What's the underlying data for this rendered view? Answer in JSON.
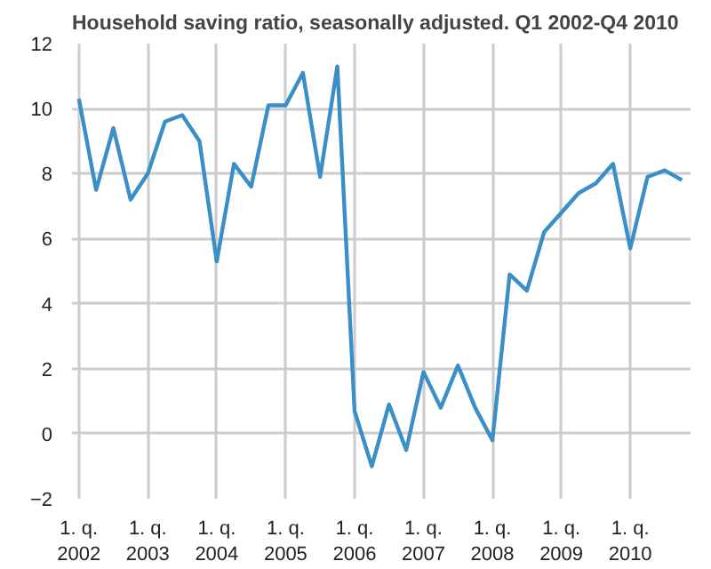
{
  "chart_data": {
    "type": "line",
    "title": "Household saving ratio, seasonally adjusted. Q1 2002-Q4 2010",
    "categories": [
      "1. q.\n2002",
      null,
      null,
      null,
      "1. q.\n2003",
      null,
      null,
      null,
      "1. q.\n2004",
      null,
      null,
      null,
      "1. q.\n2005",
      null,
      null,
      null,
      "1. q.\n2006",
      null,
      null,
      null,
      "1. q.\n2007",
      null,
      null,
      null,
      "1. q.\n2008",
      null,
      null,
      null,
      "1. q.\n2009",
      null,
      null,
      null,
      "1. q.\n2010",
      null,
      null,
      null
    ],
    "series": [
      {
        "color": "#3a8fc7",
        "values": [
          10.3,
          7.5,
          9.4,
          7.2,
          8.0,
          9.6,
          9.8,
          9.0,
          5.3,
          8.3,
          7.6,
          10.1,
          10.1,
          11.1,
          7.9,
          11.3,
          0.7,
          -1.0,
          0.9,
          -0.5,
          1.9,
          0.8,
          2.1,
          0.8,
          -0.2,
          4.9,
          4.4,
          6.2,
          6.8,
          7.4,
          7.7,
          8.3,
          5.7,
          7.9,
          8.1,
          7.8
        ]
      }
    ],
    "ylim": [
      -2,
      12
    ],
    "yticks": [
      -2,
      0,
      2,
      4,
      6,
      8,
      10,
      12
    ],
    "grid": true,
    "marker": "none",
    "line_style": "solid"
  }
}
